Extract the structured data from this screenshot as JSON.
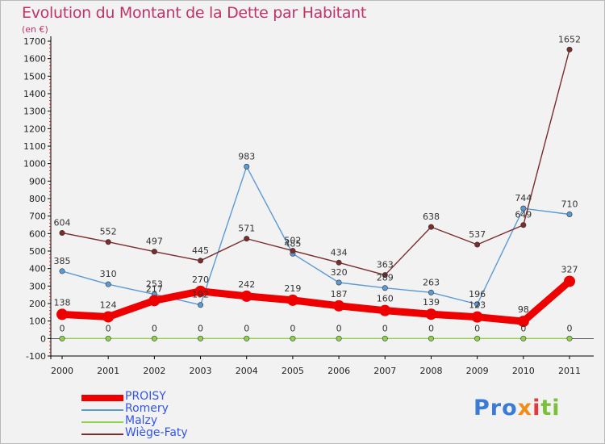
{
  "chart_data": {
    "type": "line",
    "title": "Evolution du Montant de la Dette par Habitant",
    "subtitle": "(en €)",
    "x": [
      "2000",
      "2001",
      "2002",
      "2003",
      "2004",
      "2005",
      "2006",
      "2007",
      "2008",
      "2009",
      "2010",
      "2011"
    ],
    "ylim": [
      -100,
      1700
    ],
    "yticks": [
      -100,
      0,
      100,
      200,
      300,
      400,
      500,
      600,
      700,
      800,
      900,
      1000,
      1100,
      1200,
      1300,
      1400,
      1500,
      1600,
      1700
    ],
    "grid": false,
    "legend": "bottom-left",
    "series": [
      {
        "name": "PROISY",
        "color": "#ee0000",
        "bold": true,
        "values": [
          138,
          124,
          217,
          270,
          242,
          219,
          187,
          160,
          139,
          123,
          98,
          327
        ],
        "labels": [
          "138",
          "124",
          "217",
          "270",
          "242",
          "219",
          "187",
          "160",
          "139",
          "123",
          "98",
          "327"
        ]
      },
      {
        "name": "Romery",
        "color": "#5b9bd5",
        "bold": false,
        "values": [
          385,
          310,
          253,
          192,
          983,
          485,
          320,
          289,
          263,
          196,
          744,
          710
        ],
        "labels": [
          "385",
          "310",
          "253",
          "192",
          "983",
          "485",
          "320",
          "289",
          "263",
          "196",
          "744",
          "710"
        ]
      },
      {
        "name": "Malzy",
        "color": "#8fd14f",
        "bold": false,
        "values": [
          0,
          0,
          0,
          0,
          0,
          0,
          0,
          0,
          0,
          0,
          0,
          0
        ],
        "labels": [
          "0",
          "0",
          "0",
          "0",
          "0",
          "0",
          "0",
          "0",
          "0",
          "0",
          "0",
          "0"
        ]
      },
      {
        "name": "Wiège-Faty",
        "color": "#7b2c2c",
        "bold": false,
        "values": [
          604,
          552,
          497,
          445,
          571,
          502,
          434,
          363,
          638,
          537,
          649,
          1652
        ],
        "labels": [
          "604",
          "552",
          "497",
          "445",
          "571",
          "502",
          "434",
          "363",
          "638",
          "537",
          "649",
          "1652"
        ]
      }
    ]
  },
  "legend_items": [
    {
      "label": "PROISY",
      "color": "#ee0000"
    },
    {
      "label": "Romery",
      "color": "#5b9bd5"
    },
    {
      "label": "Malzy",
      "color": "#8fd14f"
    },
    {
      "label": "Wiège-Faty",
      "color": "#7b2c2c"
    }
  ],
  "logo": {
    "p1": "Pro",
    "p2": "x",
    "p3": "i",
    "p4": "ti"
  }
}
